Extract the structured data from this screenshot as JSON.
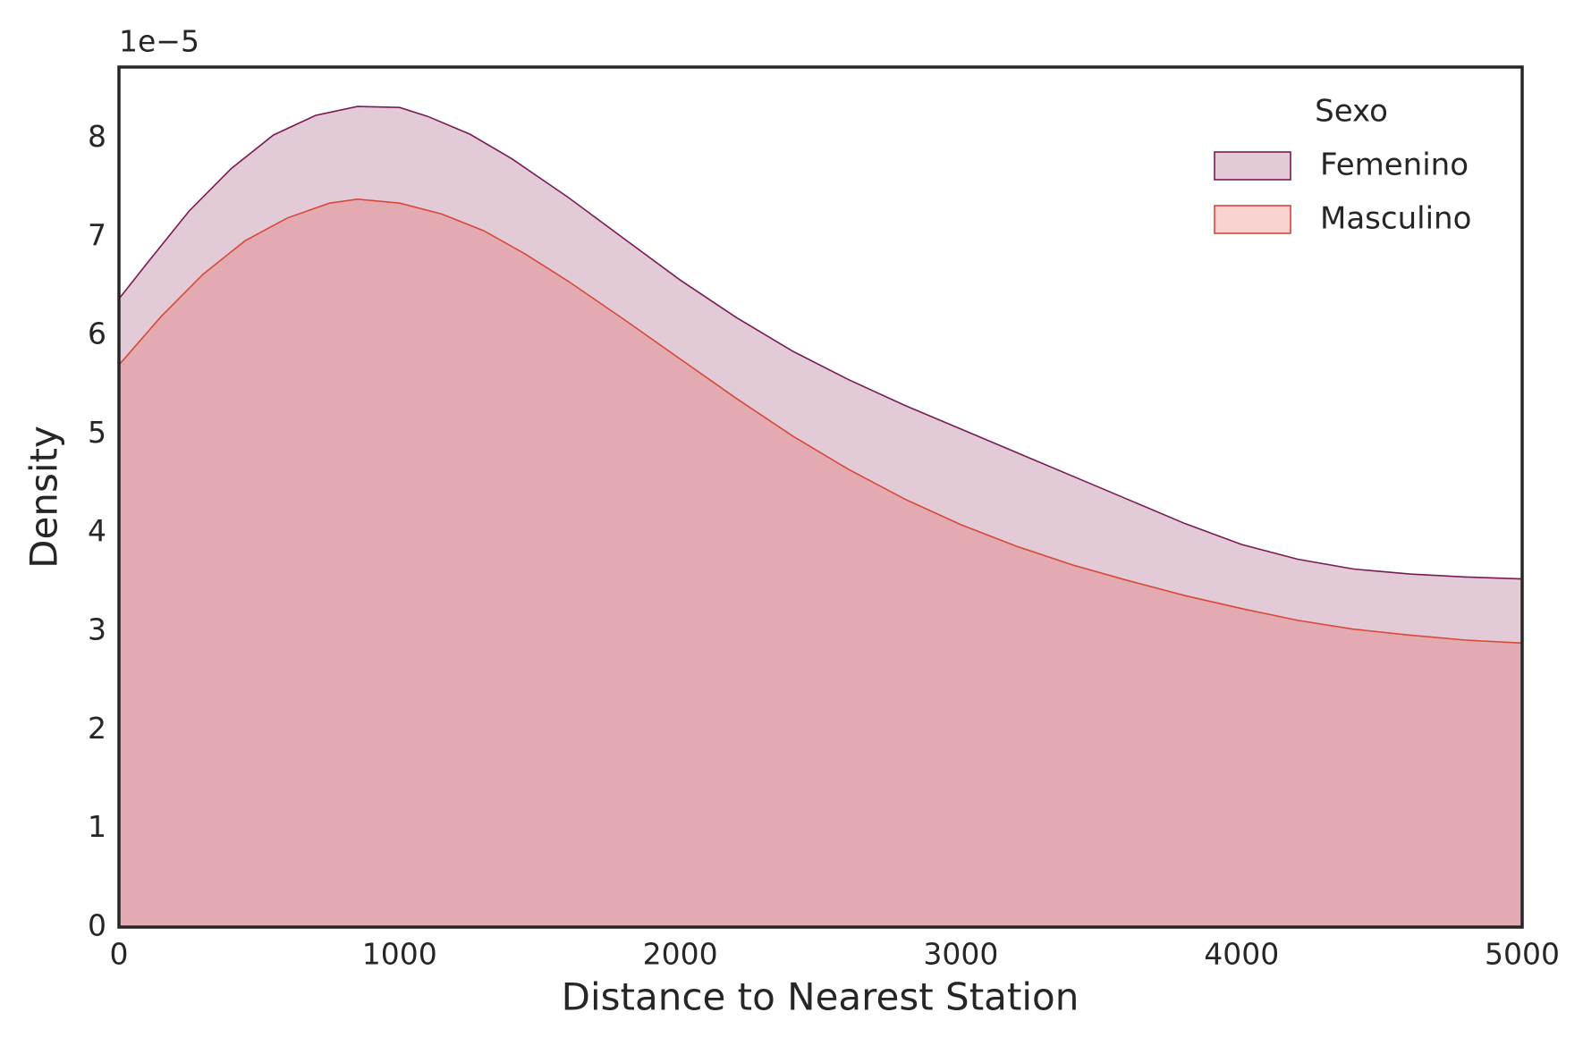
{
  "chart_data": {
    "type": "area",
    "xlabel": "Distance to Nearest Station",
    "ylabel": "Density",
    "offset_text": "1e−5",
    "xlim": [
      0,
      5000
    ],
    "ylim": [
      0,
      8.72
    ],
    "xticks": [
      0,
      1000,
      2000,
      3000,
      4000,
      5000
    ],
    "yticks": [
      0,
      1,
      2,
      3,
      4,
      5,
      6,
      7,
      8
    ],
    "grid": false,
    "legend_title": "Sexo",
    "legend": "upper right",
    "series": [
      {
        "name": "Femenino",
        "color": "#7a1a55",
        "fill": "#8a2a60",
        "x": [
          0,
          100,
          250,
          400,
          550,
          700,
          850,
          1000,
          1100,
          1250,
          1400,
          1600,
          1800,
          2000,
          2200,
          2400,
          2600,
          2800,
          3000,
          3200,
          3400,
          3600,
          3800,
          4000,
          4200,
          4400,
          4600,
          4800,
          5000
        ],
        "values": [
          6.37,
          6.73,
          7.26,
          7.69,
          8.03,
          8.23,
          8.32,
          8.31,
          8.22,
          8.04,
          7.79,
          7.4,
          6.98,
          6.56,
          6.18,
          5.84,
          5.55,
          5.29,
          5.05,
          4.81,
          4.57,
          4.33,
          4.09,
          3.88,
          3.73,
          3.63,
          3.58,
          3.55,
          3.53
        ]
      },
      {
        "name": "Masculino",
        "color": "#d9473a",
        "fill": "#e8503f",
        "x": [
          0,
          150,
          300,
          450,
          600,
          750,
          850,
          1000,
          1150,
          1300,
          1450,
          1600,
          1800,
          2000,
          2200,
          2400,
          2600,
          2800,
          3000,
          3200,
          3400,
          3600,
          3800,
          4000,
          4200,
          4400,
          4600,
          4800,
          5000
        ],
        "values": [
          5.7,
          6.19,
          6.62,
          6.96,
          7.19,
          7.34,
          7.38,
          7.34,
          7.23,
          7.06,
          6.82,
          6.55,
          6.16,
          5.76,
          5.36,
          4.98,
          4.64,
          4.34,
          4.08,
          3.86,
          3.67,
          3.51,
          3.36,
          3.23,
          3.11,
          3.02,
          2.96,
          2.91,
          2.88
        ]
      }
    ]
  }
}
